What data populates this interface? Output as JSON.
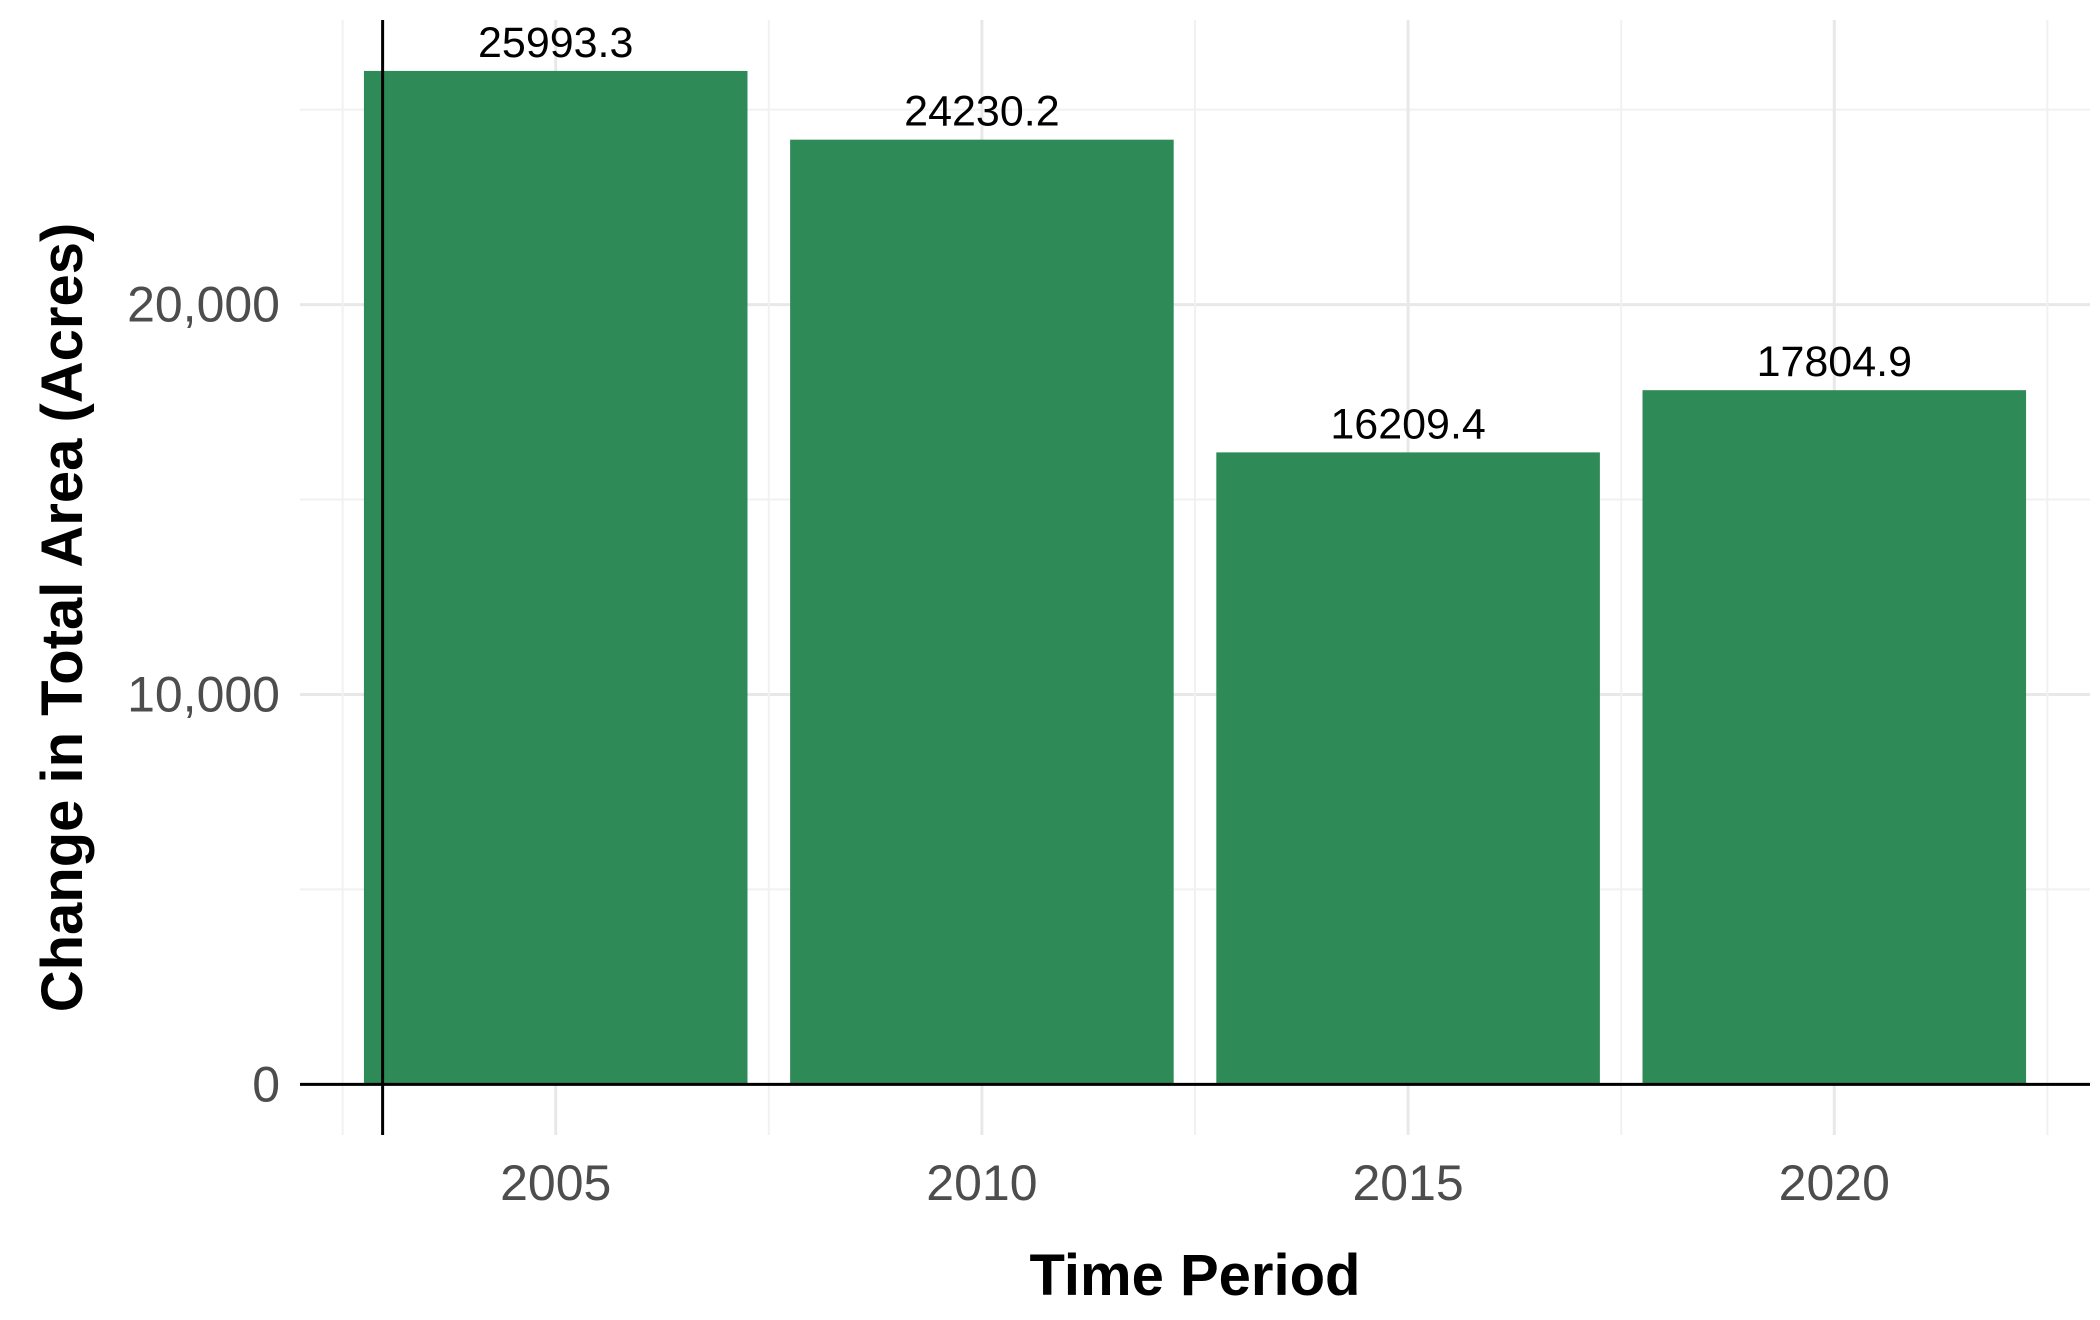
{
  "chart_data": {
    "type": "bar",
    "categories": [
      "2005",
      "2010",
      "2015",
      "2020"
    ],
    "values": [
      25993.3,
      24230.2,
      16209.4,
      17804.9
    ],
    "data_labels": [
      "25993.3",
      "24230.2",
      "16209.4",
      "17804.9"
    ],
    "title": "",
    "xlabel": "Time Period",
    "ylabel": "Change in Total Area (Acres)",
    "ylim": [
      -1300,
      27300
    ],
    "y_ticks": [
      0,
      10000,
      20000
    ],
    "y_tick_labels": [
      "0",
      "10,000",
      "20,000"
    ],
    "grid": true,
    "legend": "none",
    "bar_color": "#2e8b57"
  }
}
